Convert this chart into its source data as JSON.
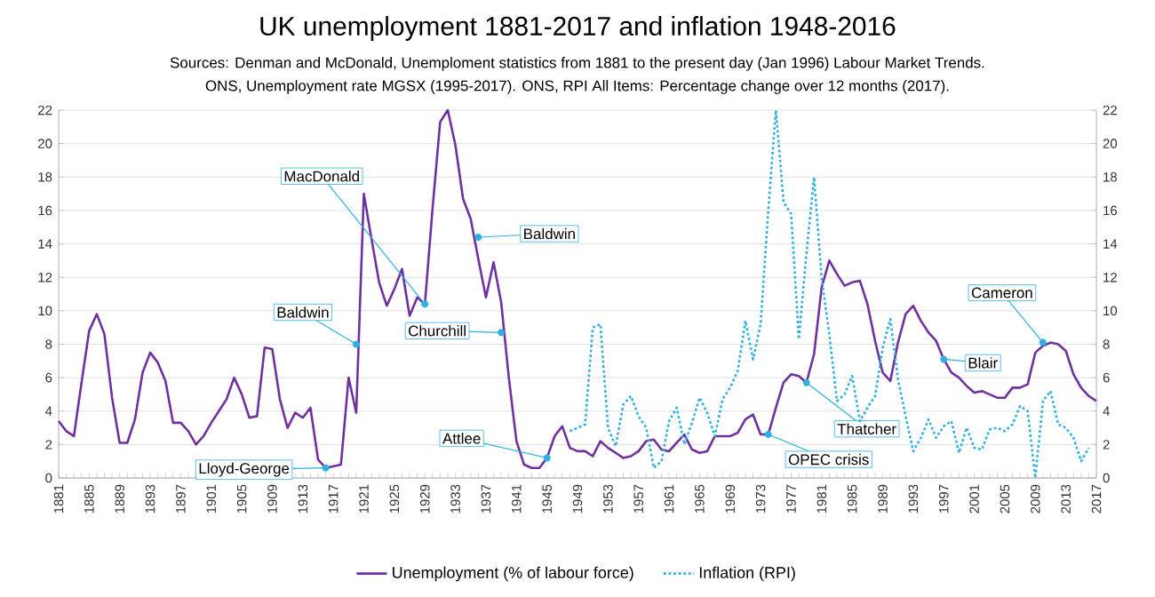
{
  "chart_data": {
    "type": "line",
    "title": "UK unemployment 1881-2017 and inflation 1948-2016",
    "annotations": [
      "Sources: Denman and McDonald, Unemploment statistics from 1881 to the present day (Jan 1996) Labour Market Trends.",
      "ONS, Unemployment rate MGSX (1995-2017). ONS, RPI All Items: Percentage change over 12 months (2017).",
      {
        "text": "Lloyd-George",
        "x": 1916,
        "y": 0.6
      },
      {
        "text": "Baldwin",
        "x": 1920,
        "y": 8
      },
      {
        "text": "MacDonald",
        "x": 1929,
        "y": 10.4
      },
      {
        "text": "Baldwin",
        "x": 1936,
        "y": 14.4
      },
      {
        "text": "Churchill",
        "x": 1939,
        "y": 8.7
      },
      {
        "text": "Attlee",
        "x": 1945,
        "y": 1.2
      },
      {
        "text": "OPEC crisis",
        "x": 1974,
        "y": 2.6
      },
      {
        "text": "Thatcher",
        "x": 1979,
        "y": 5.7
      },
      {
        "text": "Blair",
        "x": 1997,
        "y": 7.1
      },
      {
        "text": "Cameron",
        "x": 2010,
        "y": 8.1
      }
    ],
    "x": [
      1881,
      1882,
      1883,
      1884,
      1885,
      1886,
      1887,
      1888,
      1889,
      1890,
      1891,
      1892,
      1893,
      1894,
      1895,
      1896,
      1897,
      1898,
      1899,
      1900,
      1901,
      1902,
      1903,
      1904,
      1905,
      1906,
      1907,
      1908,
      1909,
      1910,
      1911,
      1912,
      1913,
      1914,
      1915,
      1916,
      1917,
      1918,
      1919,
      1920,
      1921,
      1922,
      1923,
      1924,
      1925,
      1926,
      1927,
      1928,
      1929,
      1930,
      1931,
      1932,
      1933,
      1934,
      1935,
      1936,
      1937,
      1938,
      1939,
      1940,
      1941,
      1942,
      1943,
      1944,
      1945,
      1946,
      1947,
      1948,
      1949,
      1950,
      1951,
      1952,
      1953,
      1954,
      1955,
      1956,
      1957,
      1958,
      1959,
      1960,
      1961,
      1962,
      1963,
      1964,
      1965,
      1966,
      1967,
      1968,
      1969,
      1970,
      1971,
      1972,
      1973,
      1974,
      1975,
      1976,
      1977,
      1978,
      1979,
      1980,
      1981,
      1982,
      1983,
      1984,
      1985,
      1986,
      1987,
      1988,
      1989,
      1990,
      1991,
      1992,
      1993,
      1994,
      1995,
      1996,
      1997,
      1998,
      1999,
      2000,
      2001,
      2002,
      2003,
      2004,
      2005,
      2006,
      2007,
      2008,
      2009,
      2010,
      2011,
      2012,
      2013,
      2014,
      2015,
      2016,
      2017
    ],
    "series": [
      {
        "name": "Unemployment (% of labour force)",
        "color": "#7030a0",
        "line_style": "solid",
        "values": [
          3.4,
          2.8,
          2.5,
          5.7,
          8.8,
          9.8,
          8.6,
          4.8,
          2.1,
          2.1,
          3.5,
          6.3,
          7.5,
          6.9,
          5.8,
          3.3,
          3.3,
          2.8,
          2.0,
          2.5,
          3.3,
          4.0,
          4.7,
          6.0,
          5.0,
          3.6,
          3.7,
          7.8,
          7.7,
          4.7,
          3.0,
          3.9,
          3.6,
          4.2,
          1.1,
          0.6,
          0.7,
          0.8,
          6.0,
          3.9,
          17.0,
          14.3,
          11.7,
          10.3,
          11.3,
          12.5,
          9.7,
          10.8,
          10.4,
          16.1,
          21.3,
          22.0,
          19.9,
          16.7,
          15.5,
          13.1,
          10.8,
          12.9,
          10.5,
          6.0,
          2.2,
          0.8,
          0.6,
          0.6,
          1.2,
          2.5,
          3.1,
          1.8,
          1.6,
          1.6,
          1.3,
          2.2,
          1.8,
          1.5,
          1.2,
          1.3,
          1.6,
          2.2,
          2.3,
          1.7,
          1.6,
          2.1,
          2.6,
          1.7,
          1.5,
          1.6,
          2.5,
          2.5,
          2.5,
          2.7,
          3.5,
          3.8,
          2.6,
          2.6,
          4.2,
          5.7,
          6.2,
          6.1,
          5.7,
          7.4,
          11.4,
          13.0,
          12.2,
          11.5,
          11.7,
          11.8,
          10.4,
          8.2,
          6.3,
          5.8,
          8.1,
          9.8,
          10.3,
          9.4,
          8.7,
          8.2,
          7.1,
          6.3,
          6.0,
          5.5,
          5.1,
          5.2,
          5.0,
          4.8,
          4.8,
          5.4,
          5.4,
          5.6,
          7.5,
          7.9,
          8.1,
          8.0,
          7.6,
          6.2,
          5.4,
          4.9,
          4.6
        ]
      },
      {
        "name": "Inflation (RPI)",
        "color": "#2eb0e4",
        "line_style": "dotted",
        "axis": "y2",
        "x": [
          1948,
          1949,
          1950,
          1951,
          1952,
          1953,
          1954,
          1955,
          1956,
          1957,
          1958,
          1959,
          1960,
          1961,
          1962,
          1963,
          1964,
          1965,
          1966,
          1967,
          1968,
          1969,
          1970,
          1971,
          1972,
          1973,
          1974,
          1975,
          1976,
          1977,
          1978,
          1979,
          1980,
          1981,
          1982,
          1983,
          1984,
          1985,
          1986,
          1987,
          1988,
          1989,
          1990,
          1991,
          1992,
          1993,
          1994,
          1995,
          1996,
          1997,
          1998,
          1999,
          2000,
          2001,
          2002,
          2003,
          2004,
          2005,
          2006,
          2007,
          2008,
          2009,
          2010,
          2011,
          2012,
          2013,
          2014,
          2015,
          2016
        ],
        "values": [
          2.8,
          3.0,
          3.2,
          9.0,
          9.2,
          3.0,
          1.9,
          4.4,
          4.9,
          3.7,
          3.0,
          0.6,
          1.0,
          3.4,
          4.2,
          2.0,
          3.3,
          4.8,
          3.9,
          2.5,
          4.7,
          5.4,
          6.4,
          9.4,
          7.1,
          9.2,
          16.0,
          22,
          16.5,
          15.8,
          8.3,
          13.4,
          18.0,
          11.9,
          8.6,
          4.6,
          5.0,
          6.1,
          3.4,
          4.2,
          4.9,
          7.8,
          9.5,
          5.9,
          3.7,
          1.6,
          2.4,
          3.5,
          2.4,
          3.1,
          3.4,
          1.5,
          3.0,
          1.8,
          1.7,
          2.9,
          3.0,
          2.8,
          3.2,
          4.3,
          4.0,
          0,
          4.6,
          5.2,
          3.2,
          3.0,
          2.4,
          1.0,
          1.8
        ]
      }
    ],
    "xlim": [
      1881,
      2017
    ],
    "xticks": [
      1881,
      1885,
      1889,
      1893,
      1897,
      1901,
      1905,
      1909,
      1913,
      1917,
      1921,
      1925,
      1929,
      1933,
      1937,
      1941,
      1945,
      1949,
      1953,
      1957,
      1961,
      1965,
      1969,
      1973,
      1977,
      1981,
      1985,
      1989,
      1993,
      1997,
      2001,
      2005,
      2009,
      2013,
      2017
    ],
    "ylim": [
      0,
      22
    ],
    "yticks": [
      0,
      2,
      4,
      6,
      8,
      10,
      12,
      14,
      16,
      18,
      20,
      22
    ],
    "y2lim": [
      0,
      22
    ],
    "y2ticks": [
      0,
      2,
      4,
      6,
      8,
      10,
      12,
      14,
      16,
      18,
      20,
      22
    ],
    "grid": "y",
    "legend": "bottom",
    "marker": "none"
  }
}
